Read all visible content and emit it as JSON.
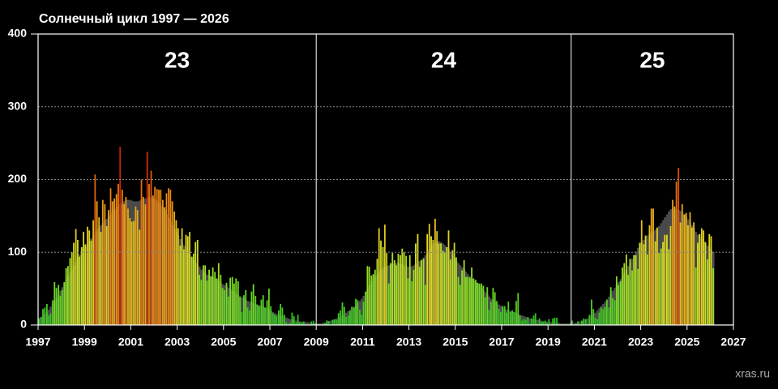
{
  "chart_data": {
    "type": "bar",
    "title": "Солнечный цикл   1997 — 2026",
    "watermark": "xras.ru",
    "xlim": [
      1997,
      2027
    ],
    "xticks": [
      1997,
      1999,
      2001,
      2003,
      2005,
      2007,
      2009,
      2011,
      2013,
      2015,
      2017,
      2019,
      2021,
      2023,
      2025,
      2027
    ],
    "ylim": [
      0,
      400
    ],
    "yticks": [
      0,
      100,
      200,
      300,
      400
    ],
    "grid": true,
    "cycle_boundaries": [
      2009,
      2020
    ],
    "cycle_labels": [
      "23",
      "24",
      "25"
    ],
    "x": [
      1997.04,
      1997.13,
      1997.21,
      1997.29,
      1997.38,
      1997.46,
      1997.54,
      1997.63,
      1997.71,
      1997.79,
      1997.88,
      1997.96,
      1998.04,
      1998.13,
      1998.21,
      1998.29,
      1998.38,
      1998.46,
      1998.54,
      1998.63,
      1998.71,
      1998.79,
      1998.88,
      1998.96,
      1999.04,
      1999.13,
      1999.21,
      1999.29,
      1999.38,
      1999.46,
      1999.54,
      1999.63,
      1999.71,
      1999.79,
      1999.88,
      1999.96,
      2000.04,
      2000.13,
      2000.21,
      2000.29,
      2000.38,
      2000.46,
      2000.54,
      2000.63,
      2000.71,
      2000.79,
      2000.88,
      2000.96,
      2001.04,
      2001.13,
      2001.21,
      2001.29,
      2001.38,
      2001.46,
      2001.54,
      2001.63,
      2001.71,
      2001.79,
      2001.88,
      2001.96,
      2002.04,
      2002.13,
      2002.21,
      2002.29,
      2002.38,
      2002.46,
      2002.54,
      2002.63,
      2002.71,
      2002.79,
      2002.88,
      2002.96,
      2003.04,
      2003.13,
      2003.21,
      2003.29,
      2003.38,
      2003.46,
      2003.54,
      2003.63,
      2003.71,
      2003.79,
      2003.88,
      2003.96,
      2004.04,
      2004.13,
      2004.21,
      2004.29,
      2004.38,
      2004.46,
      2004.54,
      2004.63,
      2004.71,
      2004.79,
      2004.88,
      2004.96,
      2005.04,
      2005.13,
      2005.21,
      2005.29,
      2005.38,
      2005.46,
      2005.54,
      2005.63,
      2005.71,
      2005.79,
      2005.88,
      2005.96,
      2006.04,
      2006.13,
      2006.21,
      2006.29,
      2006.38,
      2006.46,
      2006.54,
      2006.63,
      2006.71,
      2006.79,
      2006.88,
      2006.96,
      2007.04,
      2007.13,
      2007.21,
      2007.29,
      2007.38,
      2007.46,
      2007.54,
      2007.63,
      2007.71,
      2007.79,
      2007.88,
      2007.96,
      2008.04,
      2008.13,
      2008.21,
      2008.29,
      2008.38,
      2008.46,
      2008.54,
      2008.63,
      2008.71,
      2008.79,
      2008.88,
      2008.96,
      2009.04,
      2009.13,
      2009.21,
      2009.29,
      2009.38,
      2009.46,
      2009.54,
      2009.63,
      2009.71,
      2009.79,
      2009.88,
      2009.96,
      2010.04,
      2010.13,
      2010.21,
      2010.29,
      2010.38,
      2010.46,
      2010.54,
      2010.63,
      2010.71,
      2010.79,
      2010.88,
      2010.96,
      2011.04,
      2011.13,
      2011.21,
      2011.29,
      2011.38,
      2011.46,
      2011.54,
      2011.63,
      2011.71,
      2011.79,
      2011.88,
      2011.96,
      2012.04,
      2012.13,
      2012.21,
      2012.29,
      2012.38,
      2012.46,
      2012.54,
      2012.63,
      2012.71,
      2012.79,
      2012.88,
      2012.96,
      2013.04,
      2013.13,
      2013.21,
      2013.29,
      2013.38,
      2013.46,
      2013.54,
      2013.63,
      2013.71,
      2013.79,
      2013.88,
      2013.96,
      2014.04,
      2014.13,
      2014.21,
      2014.29,
      2014.38,
      2014.46,
      2014.54,
      2014.63,
      2014.71,
      2014.79,
      2014.88,
      2014.96,
      2015.04,
      2015.13,
      2015.21,
      2015.29,
      2015.38,
      2015.46,
      2015.54,
      2015.63,
      2015.71,
      2015.79,
      2015.88,
      2015.96,
      2016.04,
      2016.13,
      2016.21,
      2016.29,
      2016.38,
      2016.46,
      2016.54,
      2016.63,
      2016.71,
      2016.79,
      2016.88,
      2016.96,
      2017.04,
      2017.13,
      2017.21,
      2017.29,
      2017.38,
      2017.46,
      2017.54,
      2017.63,
      2017.71,
      2017.79,
      2017.88,
      2017.96,
      2018.04,
      2018.13,
      2018.21,
      2018.29,
      2018.38,
      2018.46,
      2018.54,
      2018.63,
      2018.71,
      2018.79,
      2018.88,
      2018.96,
      2019.04,
      2019.13,
      2019.21,
      2019.29,
      2019.38,
      2019.46,
      2019.54,
      2019.63,
      2019.71,
      2019.79,
      2019.88,
      2019.96,
      2020.04,
      2020.13,
      2020.21,
      2020.29,
      2020.38,
      2020.46,
      2020.54,
      2020.63,
      2020.71,
      2020.79,
      2020.88,
      2020.96,
      2021.04,
      2021.13,
      2021.21,
      2021.29,
      2021.38,
      2021.46,
      2021.54,
      2021.63,
      2021.71,
      2021.79,
      2021.88,
      2021.96,
      2022.04,
      2022.13,
      2022.21,
      2022.29,
      2022.38,
      2022.46,
      2022.54,
      2022.63,
      2022.71,
      2022.79,
      2022.88,
      2022.96,
      2023.04,
      2023.13,
      2023.21,
      2023.29,
      2023.38,
      2023.46,
      2023.54,
      2023.63,
      2023.71,
      2023.79,
      2023.88,
      2023.96,
      2024.04,
      2024.13,
      2024.21,
      2024.29,
      2024.38,
      2024.46,
      2024.54,
      2024.63,
      2024.71,
      2024.79,
      2024.88,
      2024.96,
      2025.04,
      2025.13,
      2025.21,
      2025.29,
      2025.38,
      2025.46,
      2025.54,
      2025.63,
      2025.71,
      2025.79,
      2025.88,
      2025.96,
      2026.04,
      2026.13
    ],
    "series": [
      {
        "color_scale": [
          "#22bb22",
          "#77dd22",
          "#dddd22",
          "#ee8811",
          "#cc2200"
        ],
        "values": [
          8,
          11,
          22,
          24,
          29,
          13,
          16,
          34,
          59,
          51,
          55,
          40,
          48,
          59,
          78,
          81,
          92,
          100,
          113,
          132,
          117,
          94,
          107,
          128,
          111,
          135,
          130,
          116,
          144,
          207,
          170,
          148,
          128,
          172,
          166,
          136,
          158,
          188,
          170,
          174,
          180,
          194,
          245,
          186,
          166,
          176,
          160,
          147,
          142,
          143,
          163,
          158,
          131,
          200,
          176,
          166,
          238,
          194,
          212,
          178,
          190,
          187,
          186,
          186,
          172,
          162,
          181,
          188,
          186,
          170,
          156,
          144,
          133,
          109,
          133,
          104,
          124,
          122,
          128,
          94,
          98,
          114,
          117,
          69,
          62,
          82,
          82,
          61,
          76,
          67,
          79,
          73,
          64,
          85,
          69,
          51,
          48,
          58,
          39,
          65,
          66,
          57,
          64,
          60,
          38,
          18,
          41,
          48,
          24,
          20,
          46,
          56,
          40,
          28,
          26,
          35,
          41,
          24,
          34,
          50,
          26,
          16,
          14,
          12,
          20,
          29,
          24,
          14,
          4,
          2,
          3,
          17,
          12,
          3,
          14,
          4,
          4,
          5,
          1,
          0.5,
          1,
          5,
          6,
          2,
          1.3,
          1.2,
          0.6,
          1.2,
          2.9,
          6.3,
          5.5,
          0,
          7.1,
          7.7,
          6.9,
          16.3,
          20,
          31,
          25,
          11,
          13,
          19,
          25,
          24,
          36,
          34,
          21,
          14,
          32,
          46,
          81,
          80,
          68,
          70,
          76,
          91,
          133,
          116,
          107,
          138,
          99,
          57,
          85,
          99,
          89,
          82,
          98,
          96,
          105,
          100,
          95,
          64,
          96,
          60,
          76,
          112,
          125,
          80,
          89,
          91,
          55,
          125,
          139,
          122,
          117,
          146,
          129,
          112,
          112,
          102,
          100,
          107,
          130,
          90,
          103,
          113,
          93,
          66,
          55,
          75,
          89,
          66,
          66,
          65,
          79,
          64,
          62,
          58,
          57,
          57,
          54,
          38,
          52,
          21,
          32,
          51,
          45,
          33,
          22,
          18,
          26,
          26,
          17,
          32,
          18,
          20,
          18,
          33,
          44,
          13,
          6,
          8,
          7,
          11,
          2,
          9,
          13,
          16,
          2,
          9,
          4,
          5,
          6,
          3,
          8,
          1,
          9,
          10,
          10,
          1,
          1,
          0.5,
          1,
          0.4,
          0.5,
          1.5,
          6,
          0.2,
          1.5,
          5,
          0.2,
          6,
          9,
          8,
          1,
          14,
          35,
          22,
          10,
          8,
          17,
          24,
          22,
          25,
          35,
          24,
          52,
          37,
          34,
          67,
          55,
          60,
          79,
          85,
          97,
          69,
          91,
          75,
          96,
          96,
          77,
          113,
          144,
          111,
          123,
          97,
          137,
          160,
          160,
          115,
          134,
          99,
          105,
          114,
          124,
          124,
          104,
          136,
          172,
          163,
          197,
          216,
          141,
          166,
          152,
          154,
          137,
          155,
          134,
          141,
          79,
          113,
          125,
          133,
          130,
          114,
          90,
          125,
          122,
          78
        ]
      },
      {
        "color": "#4a4a4a",
        "values": [
          10,
          11,
          13,
          15,
          18,
          21,
          25,
          29,
          33,
          37,
          42,
          47,
          52,
          57,
          62,
          67,
          72,
          77,
          82,
          87,
          92,
          97,
          101,
          105,
          108,
          111,
          115,
          119,
          123,
          127,
          131,
          134,
          137,
          140,
          143,
          146,
          150,
          153,
          156,
          159,
          162,
          164,
          166,
          168,
          170,
          172,
          172,
          172,
          171,
          170,
          170,
          170,
          171,
          172,
          173,
          174,
          175,
          176,
          175,
          174,
          172,
          170,
          167,
          164,
          161,
          157,
          152,
          147,
          142,
          137,
          132,
          128,
          123,
          118,
          113,
          109,
          105,
          101,
          97,
          93,
          89,
          86,
          83,
          80,
          76,
          73,
          71,
          69,
          68,
          67,
          66,
          64,
          62,
          60,
          58,
          56,
          55,
          53,
          51,
          49,
          47,
          45,
          43,
          41,
          40,
          38,
          36,
          34,
          33,
          32,
          31,
          30,
          29,
          28,
          27,
          26,
          25,
          24,
          23,
          22,
          20,
          18,
          16,
          15,
          14,
          13,
          12,
          11,
          10,
          9,
          8,
          7,
          7,
          6,
          5,
          5,
          4,
          4,
          4,
          4,
          3,
          3,
          3,
          2,
          2,
          2,
          2,
          3,
          3,
          4,
          5,
          6,
          7,
          8,
          9,
          10,
          11,
          13,
          15,
          17,
          19,
          21,
          23,
          25,
          27,
          30,
          33,
          36,
          40,
          45,
          50,
          55,
          60,
          64,
          67,
          70,
          73,
          76,
          78,
          80,
          81,
          82,
          83,
          84,
          85,
          85,
          85,
          84,
          83,
          82,
          81,
          80,
          80,
          81,
          82,
          84,
          86,
          88,
          90,
          93,
          96,
          100,
          104,
          108,
          112,
          114,
          115,
          115,
          114,
          112,
          110,
          107,
          104,
          100,
          96,
          92,
          88,
          85,
          82,
          79,
          76,
          73,
          70,
          67,
          64,
          61,
          59,
          57,
          54,
          51,
          48,
          45,
          42,
          39,
          36,
          34,
          32,
          30,
          28,
          26,
          24,
          22,
          21,
          20,
          19,
          18,
          17,
          16,
          15,
          14,
          13,
          12,
          11,
          10,
          9,
          8,
          8,
          7,
          7,
          6,
          6,
          5,
          5,
          4,
          4,
          4,
          4,
          3,
          3,
          3,
          2,
          2,
          2,
          2,
          2,
          2,
          2,
          3,
          3,
          4,
          5,
          6,
          7,
          8,
          9,
          11,
          13,
          15,
          17,
          20,
          23,
          26,
          29,
          32,
          35,
          39,
          43,
          47,
          51,
          55,
          59,
          63,
          67,
          71,
          76,
          81,
          86,
          91,
          96,
          101,
          106,
          111,
          114,
          117,
          120,
          123,
          125,
          127,
          129,
          131,
          133,
          136,
          140,
          144,
          148,
          152,
          156,
          159,
          160,
          160,
          159,
          158,
          157,
          155,
          152,
          149,
          145,
          141,
          137,
          133,
          128,
          124,
          121,
          118,
          115,
          112,
          109,
          106,
          103,
          100
        ]
      }
    ]
  }
}
